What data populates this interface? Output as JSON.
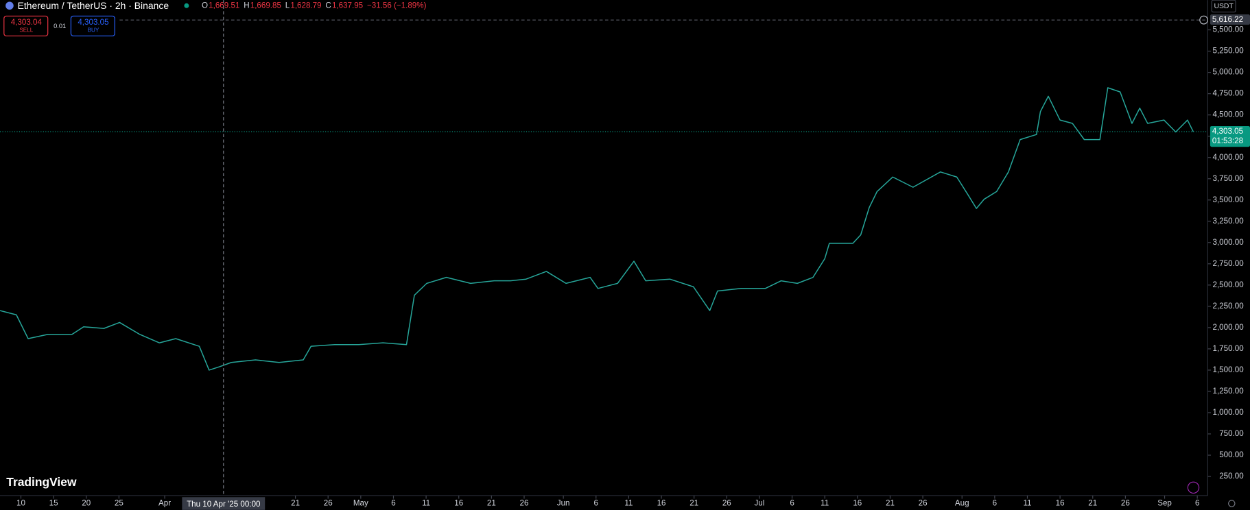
{
  "header": {
    "symbol": "Ethereum / TetherUS · 2h · Binance",
    "ohlc": [
      {
        "key": "O",
        "value": "1,669.51"
      },
      {
        "key": "H",
        "value": "1,669.85"
      },
      {
        "key": "L",
        "value": "1,628.79"
      },
      {
        "key": "C",
        "value": "1,637.95"
      }
    ],
    "change": "−31.56 (−1.89%)",
    "currency": "USDT"
  },
  "trade": {
    "sell_price": "4,303.04",
    "sell": "SELL",
    "quantity": "0.01",
    "buy_price": "4,303.05",
    "buy": "BUY"
  },
  "logo": "TradingView",
  "crosshair": {
    "x": 31,
    "label": "Thu 10 Apr '25   00:00"
  },
  "countdown": "01:53:28",
  "chart_data": {
    "type": "line",
    "series": [
      {
        "name": "ETHUSDT",
        "color": "#26a69a",
        "x": [
          -3.2,
          -0.7,
          1.1,
          4.1,
          7.8,
          9.6,
          12.7,
          15.1,
          18.2,
          21.2,
          23.7,
          27.3,
          28.8,
          30.4,
          32.2,
          35.9,
          39.5,
          43.2,
          44.4,
          48.0,
          51.7,
          55.4,
          59.0,
          60.2,
          62.1,
          65.1,
          68.8,
          72.4,
          74.9,
          77.3,
          80.4,
          83.4,
          87.1,
          88.3,
          91.3,
          93.8,
          95.6,
          99.3,
          102.9,
          105.4,
          106.6,
          110.2,
          113.9,
          116.3,
          118.8,
          121.2,
          123.0,
          123.7,
          127.3,
          128.5,
          129.8,
          131.0,
          133.4,
          136.5,
          140.7,
          143.2,
          145.0,
          146.2,
          147.4,
          149.3,
          151.1,
          152.9,
          155.4,
          156.0,
          157.2,
          159.0,
          160.9,
          162.7,
          165.1,
          166.3,
          168.2,
          170.0,
          171.2,
          172.4,
          174.9,
          176.7,
          178.5,
          179.4
        ],
        "values": [
          2200,
          2150,
          1870,
          1920,
          1920,
          2010,
          1990,
          2060,
          1920,
          1820,
          1870,
          1780,
          1500,
          1540,
          1590,
          1620,
          1590,
          1620,
          1780,
          1800,
          1800,
          1820,
          1800,
          2380,
          2520,
          2590,
          2520,
          2550,
          2550,
          2570,
          2660,
          2520,
          2590,
          2460,
          2520,
          2780,
          2550,
          2570,
          2480,
          2200,
          2430,
          2460,
          2460,
          2550,
          2520,
          2590,
          2810,
          2990,
          2990,
          3090,
          3410,
          3600,
          3770,
          3650,
          3830,
          3770,
          3550,
          3400,
          3510,
          3600,
          3830,
          4210,
          4270,
          4540,
          4720,
          4440,
          4400,
          4210,
          4210,
          4820,
          4770,
          4400,
          4580,
          4400,
          4440,
          4300,
          4440,
          4300
        ]
      }
    ],
    "xlim": [
      -3.2,
      181.6
    ],
    "xticks": [
      {
        "value": 0,
        "label": "10"
      },
      {
        "value": 5,
        "label": "15"
      },
      {
        "value": 10,
        "label": "20"
      },
      {
        "value": 15,
        "label": "25"
      },
      {
        "value": 22,
        "label": "Apr"
      },
      {
        "value": 42,
        "label": "21"
      },
      {
        "value": 47,
        "label": "26"
      },
      {
        "value": 52,
        "label": "May"
      },
      {
        "value": 57,
        "label": "6"
      },
      {
        "value": 62,
        "label": "11"
      },
      {
        "value": 67,
        "label": "16"
      },
      {
        "value": 72,
        "label": "21"
      },
      {
        "value": 77,
        "label": "26"
      },
      {
        "value": 83,
        "label": "Jun"
      },
      {
        "value": 88,
        "label": "6"
      },
      {
        "value": 93,
        "label": "11"
      },
      {
        "value": 98,
        "label": "16"
      },
      {
        "value": 103,
        "label": "21"
      },
      {
        "value": 108,
        "label": "26"
      },
      {
        "value": 113,
        "label": "Jul"
      },
      {
        "value": 118,
        "label": "6"
      },
      {
        "value": 123,
        "label": "11"
      },
      {
        "value": 128,
        "label": "16"
      },
      {
        "value": 133,
        "label": "21"
      },
      {
        "value": 138,
        "label": "26"
      },
      {
        "value": 144,
        "label": "Aug"
      },
      {
        "value": 149,
        "label": "6"
      },
      {
        "value": 154,
        "label": "11"
      },
      {
        "value": 159,
        "label": "16"
      },
      {
        "value": 164,
        "label": "21"
      },
      {
        "value": 169,
        "label": "26"
      },
      {
        "value": 175,
        "label": "Sep"
      },
      {
        "value": 180,
        "label": "6"
      }
    ],
    "ylim": [
      0,
      5850
    ],
    "yticks": [
      {
        "value": 250,
        "label": "250.00"
      },
      {
        "value": 500,
        "label": "500.00"
      },
      {
        "value": 750,
        "label": "750.00"
      },
      {
        "value": 1000,
        "label": "1,000.00"
      },
      {
        "value": 1250,
        "label": "1,250.00"
      },
      {
        "value": 1500,
        "label": "1,500.00"
      },
      {
        "value": 1750,
        "label": "1,750.00"
      },
      {
        "value": 2000,
        "label": "2,000.00"
      },
      {
        "value": 2250,
        "label": "2,250.00"
      },
      {
        "value": 2500,
        "label": "2,500.00"
      },
      {
        "value": 2750,
        "label": "2,750.00"
      },
      {
        "value": 3000,
        "label": "3,000.00"
      },
      {
        "value": 3250,
        "label": "3,250.00"
      },
      {
        "value": 3500,
        "label": "3,500.00"
      },
      {
        "value": 3750,
        "label": "3,750.00"
      },
      {
        "value": 4000,
        "label": "4,000.00"
      },
      {
        "value": 4250,
        "label": "4,250.00"
      },
      {
        "value": 4500,
        "label": "4,500.00"
      },
      {
        "value": 4750,
        "label": "4,750.00"
      },
      {
        "value": 5000,
        "label": "5,000.00"
      },
      {
        "value": 5250,
        "label": "5,250.00"
      },
      {
        "value": 5500,
        "label": "5,500.00"
      }
    ],
    "price_lines": [
      {
        "value": 5616.22,
        "label": "5,616.22",
        "color": "#5d606b"
      },
      {
        "value": 4303.05,
        "label": "4,303.05",
        "color": "#089981"
      }
    ]
  }
}
